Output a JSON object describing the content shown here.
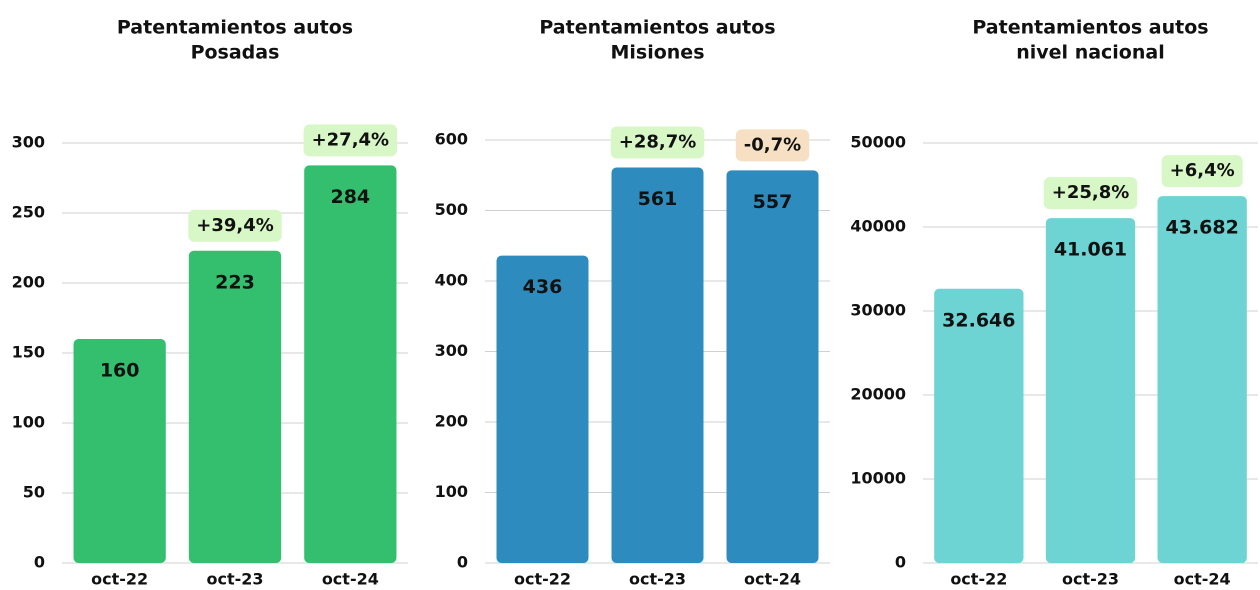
{
  "chart_data": [
    {
      "type": "bar",
      "title": [
        "Patentamientos autos",
        "Posadas"
      ],
      "categories": [
        "oct-22",
        "oct-23",
        "oct-24"
      ],
      "values": [
        160,
        223,
        284
      ],
      "annotations": [
        null,
        "+39,4%",
        "+27,4%"
      ],
      "color": "#34bf6f",
      "ylim": [
        0,
        300
      ],
      "yticks": [
        0,
        50,
        100,
        150,
        200,
        250,
        300
      ],
      "grid": true
    },
    {
      "type": "bar",
      "title": [
        "Patentamientos autos",
        "Misiones"
      ],
      "categories": [
        "oct-22",
        "oct-23",
        "oct-24"
      ],
      "values": [
        436,
        561,
        557
      ],
      "annotations": [
        null,
        "+28,7%",
        "-0,7%"
      ],
      "color": "#2e8bbd",
      "ylim": [
        0,
        600
      ],
      "yticks": [
        0,
        100,
        200,
        300,
        400,
        500,
        600
      ],
      "grid": true
    },
    {
      "type": "bar",
      "title": [
        "Patentamientos autos",
        "nivel nacional"
      ],
      "categories": [
        "oct-22",
        "oct-23",
        "oct-24"
      ],
      "values": [
        32646,
        41061,
        43682
      ],
      "value_labels": [
        "32.646",
        "41.061",
        "43.682"
      ],
      "annotations": [
        null,
        "+25,8%",
        "+6,4%"
      ],
      "color": "#6dd3d3",
      "ylim": [
        0,
        50000
      ],
      "yticks": [
        0,
        10000,
        20000,
        30000,
        40000,
        50000
      ],
      "grid": true
    }
  ]
}
